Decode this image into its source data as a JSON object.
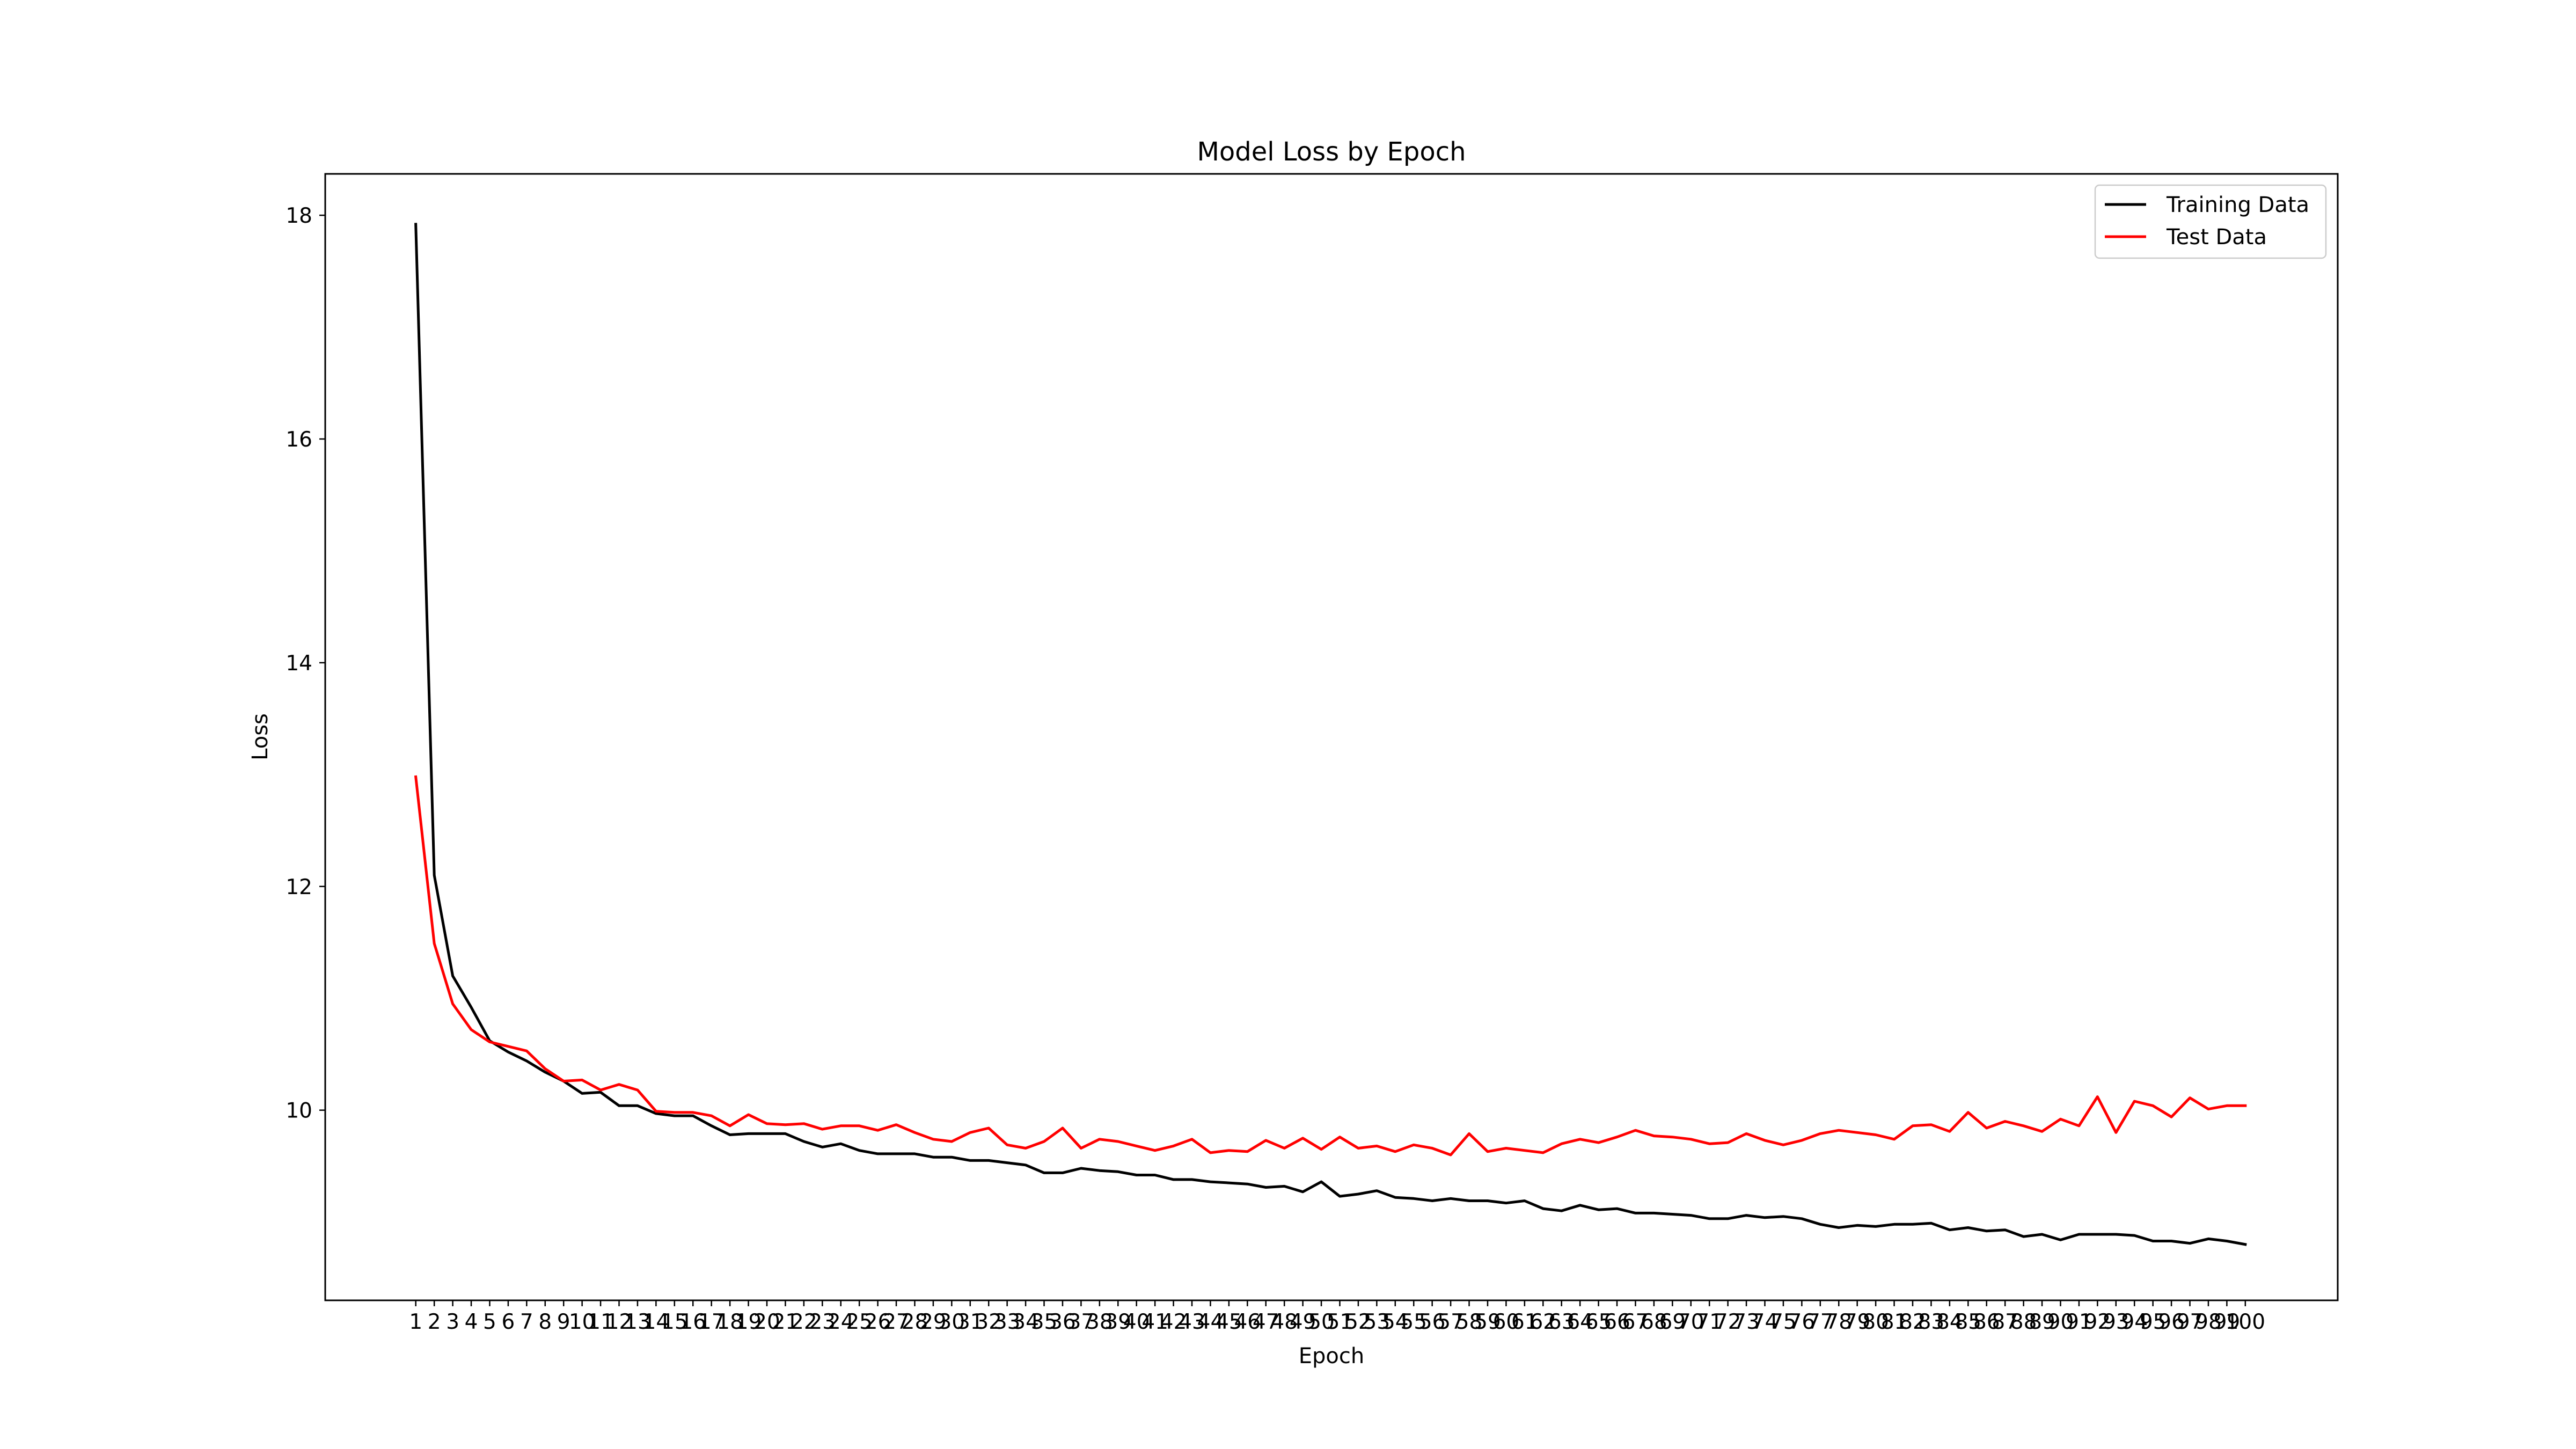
{
  "chart_data": {
    "type": "line",
    "title": "Model Loss by Epoch",
    "xlabel": "Epoch",
    "ylabel": "Loss",
    "xlim": [
      -3.9,
      105.0
    ],
    "ylim": [
      8.3,
      18.37
    ],
    "yticks": [
      10,
      12,
      14,
      16,
      18
    ],
    "x": [
      1,
      2,
      3,
      4,
      5,
      6,
      7,
      8,
      9,
      10,
      11,
      12,
      13,
      14,
      15,
      16,
      17,
      18,
      19,
      20,
      21,
      22,
      23,
      24,
      25,
      26,
      27,
      28,
      29,
      30,
      31,
      32,
      33,
      34,
      35,
      36,
      37,
      38,
      39,
      40,
      41,
      42,
      43,
      44,
      45,
      46,
      47,
      48,
      49,
      50,
      51,
      52,
      53,
      54,
      55,
      56,
      57,
      58,
      59,
      60,
      61,
      62,
      63,
      64,
      65,
      66,
      67,
      68,
      69,
      70,
      71,
      72,
      73,
      74,
      75,
      76,
      77,
      78,
      79,
      80,
      81,
      82,
      83,
      84,
      85,
      86,
      87,
      88,
      89,
      90,
      91,
      92,
      93,
      94,
      95,
      96,
      97,
      98,
      99,
      100
    ],
    "grid": false,
    "legend_position": "top-right",
    "series": [
      {
        "name": "Training Data",
        "color": "#000000",
        "values": [
          17.92,
          12.1,
          11.2,
          10.92,
          10.62,
          10.52,
          10.44,
          10.34,
          10.26,
          10.15,
          10.16,
          10.04,
          10.04,
          9.97,
          9.95,
          9.95,
          9.86,
          9.78,
          9.79,
          9.79,
          9.79,
          9.72,
          9.67,
          9.7,
          9.64,
          9.61,
          9.61,
          9.61,
          9.58,
          9.58,
          9.55,
          9.55,
          9.53,
          9.51,
          9.44,
          9.44,
          9.48,
          9.46,
          9.45,
          9.42,
          9.42,
          9.38,
          9.38,
          9.36,
          9.35,
          9.34,
          9.31,
          9.32,
          9.27,
          9.36,
          9.23,
          9.25,
          9.28,
          9.22,
          9.21,
          9.19,
          9.21,
          9.19,
          9.19,
          9.17,
          9.19,
          9.12,
          9.1,
          9.15,
          9.11,
          9.12,
          9.08,
          9.08,
          9.07,
          9.06,
          9.03,
          9.03,
          9.06,
          9.04,
          9.05,
          9.03,
          8.98,
          8.95,
          8.97,
          8.96,
          8.98,
          8.98,
          8.99,
          8.93,
          8.95,
          8.92,
          8.93,
          8.87,
          8.89,
          8.84,
          8.89,
          8.89,
          8.89,
          8.88,
          8.83,
          8.83,
          8.81,
          8.85,
          8.83,
          8.8
        ]
      },
      {
        "name": "Test Data",
        "color": "#ff0000",
        "values": [
          12.98,
          11.49,
          10.95,
          10.72,
          10.61,
          10.57,
          10.53,
          10.37,
          10.26,
          10.27,
          10.18,
          10.23,
          10.18,
          9.99,
          9.98,
          9.98,
          9.95,
          9.86,
          9.96,
          9.88,
          9.87,
          9.88,
          9.83,
          9.86,
          9.86,
          9.82,
          9.87,
          9.8,
          9.74,
          9.72,
          9.8,
          9.84,
          9.69,
          9.66,
          9.72,
          9.84,
          9.66,
          9.74,
          9.72,
          9.68,
          9.64,
          9.68,
          9.74,
          9.62,
          9.64,
          9.63,
          9.73,
          9.66,
          9.75,
          9.65,
          9.76,
          9.66,
          9.68,
          9.63,
          9.69,
          9.66,
          9.6,
          9.79,
          9.63,
          9.66,
          9.64,
          9.62,
          9.7,
          9.74,
          9.71,
          9.76,
          9.82,
          9.77,
          9.76,
          9.74,
          9.7,
          9.71,
          9.79,
          9.73,
          9.69,
          9.73,
          9.79,
          9.82,
          9.8,
          9.78,
          9.74,
          9.86,
          9.87,
          9.81,
          9.98,
          9.84,
          9.9,
          9.86,
          9.81,
          9.92,
          9.86,
          10.12,
          9.8,
          10.08,
          10.04,
          9.94,
          10.11,
          10.01,
          10.04,
          10.04
        ]
      }
    ]
  }
}
